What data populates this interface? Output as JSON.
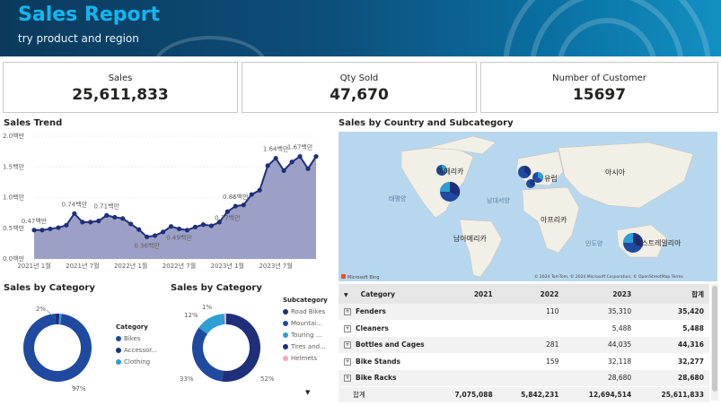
{
  "header": {
    "title": "Sales Report",
    "subtitle": "try product and region"
  },
  "kpis": [
    {
      "label": "Sales",
      "value": "25,611,833"
    },
    {
      "label": "Qty Sold",
      "value": "47,670"
    },
    {
      "label": "Number of Customer",
      "value": "15697"
    }
  ],
  "sales_trend": {
    "title": "Sales Trend",
    "y_ticks": [
      "0.0백만",
      "0.5백만",
      "1.0백만",
      "1.5백만",
      "2.0백만"
    ],
    "x_ticks": [
      "2021년 1월",
      "2021년 7월",
      "2022년 1월",
      "2022년 7월",
      "2023년 1월",
      "2023년 7월"
    ],
    "labels": [
      "0.47백만",
      "0.74백만",
      "0.71백만",
      "0.36백만",
      "0.49백만",
      "0.86백만",
      "0.77백만",
      "1.64백만",
      "1.67백만"
    ]
  },
  "chart_data": [
    {
      "type": "area",
      "title": "Sales Trend",
      "x": [
        "2021-01",
        "2021-02",
        "2021-03",
        "2021-04",
        "2021-05",
        "2021-06",
        "2021-07",
        "2021-08",
        "2021-09",
        "2021-10",
        "2021-11",
        "2021-12",
        "2022-01",
        "2022-02",
        "2022-03",
        "2022-04",
        "2022-05",
        "2022-06",
        "2022-07",
        "2022-08",
        "2022-09",
        "2022-10",
        "2022-11",
        "2022-12",
        "2023-01",
        "2023-02",
        "2023-03",
        "2023-04",
        "2023-05",
        "2023-06",
        "2023-07",
        "2023-08",
        "2023-09",
        "2023-10",
        "2023-11",
        "2023-12"
      ],
      "values": [
        0.47,
        0.47,
        0.49,
        0.51,
        0.55,
        0.74,
        0.6,
        0.6,
        0.62,
        0.71,
        0.68,
        0.66,
        0.57,
        0.48,
        0.36,
        0.38,
        0.44,
        0.53,
        0.49,
        0.47,
        0.52,
        0.56,
        0.54,
        0.6,
        0.77,
        0.86,
        0.88,
        1.05,
        1.12,
        1.52,
        1.64,
        1.44,
        1.58,
        1.67,
        1.47,
        1.67
      ],
      "ylim": [
        0,
        2.0
      ],
      "y_ticks": [
        "0.0백만",
        "0.5백만",
        "1.0백만",
        "1.5백만",
        "2.0백만"
      ],
      "x_ticks": [
        "2021년 1월",
        "2021년 7월",
        "2022년 1월",
        "2022년 7월",
        "2023년 1월",
        "2023년 7월"
      ],
      "grid": true
    },
    {
      "type": "pie",
      "title": "Sales by Category",
      "categories": [
        "Bikes",
        "Accessor...",
        "Clothing"
      ],
      "values": [
        97,
        2,
        1
      ]
    },
    {
      "type": "pie",
      "title": "Sales by Category",
      "categories": [
        "Road Bikes",
        "Mountai...",
        "Touring ...",
        "Tires and...",
        "Helmets"
      ],
      "values": [
        52,
        33,
        12,
        2,
        1
      ]
    }
  ],
  "donut1": {
    "title": "Sales by Category",
    "legend_title": "Category",
    "legend": [
      "Bikes",
      "Accessor...",
      "Clothing"
    ],
    "pct_labels": [
      "2%",
      "97%"
    ]
  },
  "donut2": {
    "title": "Sales by Category",
    "legend_title": "Subcategory",
    "legend": [
      "Road Bikes",
      "Mountai...",
      "Touring ...",
      "Tires and...",
      "Helmets"
    ],
    "pct_labels": [
      "1%",
      "12%",
      "33%",
      "52%"
    ]
  },
  "map": {
    "title": "Sales by Country and Subcategory",
    "labels": [
      "아메리카",
      "유럽",
      "아시아",
      "아프리카",
      "남아메리카",
      "오스트레일리아"
    ],
    "oceans": [
      "태평양",
      "남대서양",
      "인도양"
    ],
    "attribution": "© 2024 TomTom, © 2024 Microsoft Corporation, © OpenStreetMap  Terms",
    "brand": "Microsoft Bing"
  },
  "matrix": {
    "headers": [
      "Category",
      "2021",
      "2022",
      "2023",
      "합계"
    ],
    "rows": [
      [
        "Fenders",
        "",
        "110",
        "35,310",
        "35,420"
      ],
      [
        "Cleaners",
        "",
        "",
        "5,488",
        "5,488"
      ],
      [
        "Bottles and Cages",
        "",
        "281",
        "44,035",
        "44,316"
      ],
      [
        "Bike Stands",
        "",
        "159",
        "32,118",
        "32,277"
      ],
      [
        "Bike Racks",
        "",
        "",
        "28,680",
        "28,680"
      ]
    ],
    "total": [
      "합계",
      "7,075,088",
      "5,842,231",
      "12,694,514",
      "25,611,833"
    ]
  },
  "colors": {
    "navy": "#1f2f7a",
    "blue": "#1f4aa0",
    "teal": "#2d9fd3",
    "area": "#9da0c6",
    "pink": "#f4a6c0"
  }
}
